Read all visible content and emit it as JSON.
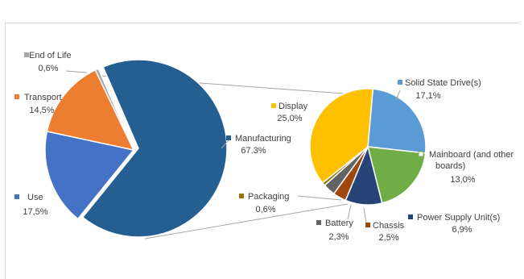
{
  "chart_data": [
    {
      "type": "pie",
      "title": "",
      "slices": [
        {
          "label": "Manufacturing",
          "value_text": "67.3%",
          "value": 67.3,
          "color": "#255e91"
        },
        {
          "label": "Use",
          "value_text": "17,5%",
          "value": 17.5,
          "color": "#4472c4"
        },
        {
          "label": "Transport",
          "value_text": "14,5%",
          "value": 14.5,
          "color": "#ed7d31"
        },
        {
          "label": "End of Life",
          "value_text": "0,6%",
          "value": 0.6,
          "color": "#a5a5a5"
        }
      ],
      "exploded_slice": "Manufacturing"
    },
    {
      "type": "pie",
      "title": "",
      "breakdown_of": "Manufacturing",
      "slices": [
        {
          "label": "Solid State Drive(s)",
          "value_text": "17,1%",
          "value": 17.1,
          "color": "#5b9bd5"
        },
        {
          "label": "Mainboard (and other boards)",
          "value_text": "13,0%",
          "value": 13.0,
          "color": "#70ad47"
        },
        {
          "label": "Power Supply Unit(s)",
          "value_text": "6,9%",
          "value": 6.9,
          "color": "#264478"
        },
        {
          "label": "Chassis",
          "value_text": "2,5%",
          "value": 2.5,
          "color": "#9e480e"
        },
        {
          "label": "Battery",
          "value_text": "2,3%",
          "value": 2.3,
          "color": "#636363"
        },
        {
          "label": "Packaging",
          "value_text": "0,6%",
          "value": 0.6,
          "color": "#997300"
        },
        {
          "label": "Display",
          "value_text": "25,0%",
          "value": 25.0,
          "color": "#ffc000"
        }
      ]
    }
  ]
}
